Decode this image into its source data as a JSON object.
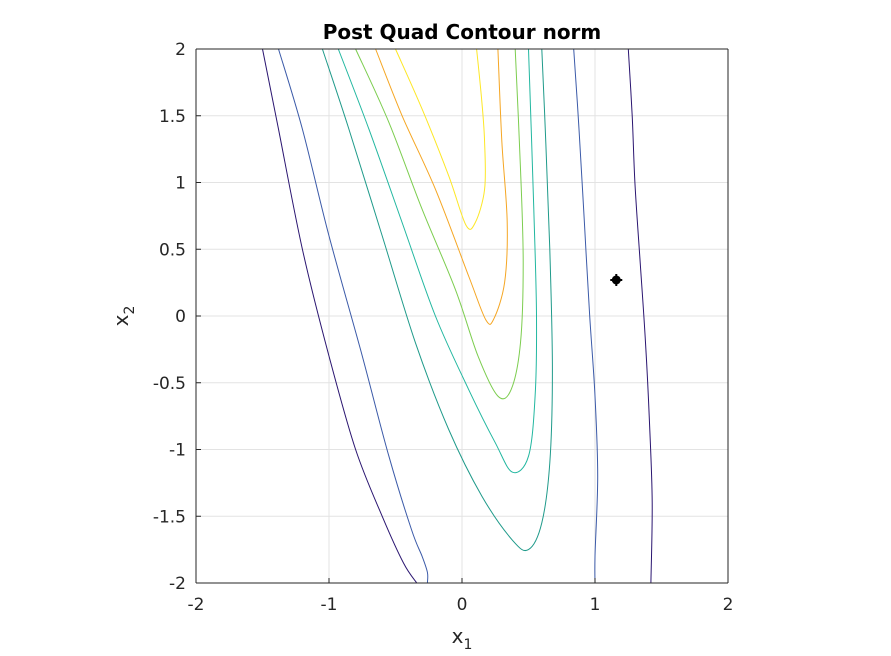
{
  "chart_data": {
    "type": "contour",
    "title": "Post Quad Contour norm",
    "xlabel": {
      "base": "x",
      "sub": "1"
    },
    "ylabel": {
      "base": "x",
      "sub": "2"
    },
    "xlim": [
      -2,
      2
    ],
    "ylim": [
      -2,
      2
    ],
    "xticks": [
      -2,
      -1,
      0,
      1,
      2
    ],
    "yticks": [
      -2,
      -1.5,
      -1,
      -0.5,
      0,
      0.5,
      1,
      1.5,
      2
    ],
    "xtick_labels": [
      "-2",
      "-1",
      "0",
      "1",
      "2"
    ],
    "ytick_labels": [
      "-2",
      "-1.5",
      "-1",
      "-0.5",
      "0",
      "0.5",
      "1",
      "1.5",
      "2"
    ],
    "grid": true,
    "marker": {
      "x": 1.16,
      "y": 0.27,
      "color": "#000000"
    },
    "contours": [
      {
        "color": "#fde725",
        "points": [
          [
            -0.5,
            2
          ],
          [
            -0.3,
            1.55
          ],
          [
            -0.1,
            1.05
          ],
          [
            0.03,
            0.68
          ],
          [
            0.1,
            0.7
          ],
          [
            0.17,
            0.95
          ],
          [
            0.17,
            1.3
          ],
          [
            0.15,
            1.6
          ],
          [
            0.11,
            2
          ]
        ]
      },
      {
        "color": "#f5a623",
        "points": [
          [
            -0.65,
            2
          ],
          [
            -0.45,
            1.5
          ],
          [
            -0.2,
            0.95
          ],
          [
            0.05,
            0.3
          ],
          [
            0.18,
            -0.03
          ],
          [
            0.24,
            -0.02
          ],
          [
            0.32,
            0.25
          ],
          [
            0.34,
            0.7
          ],
          [
            0.3,
            1.3
          ],
          [
            0.27,
            2
          ]
        ]
      },
      {
        "color": "#7ccd4f",
        "points": [
          [
            -0.8,
            2
          ],
          [
            -0.55,
            1.45
          ],
          [
            -0.3,
            0.8
          ],
          [
            -0.05,
            0.2
          ],
          [
            0.12,
            -0.3
          ],
          [
            0.27,
            -0.6
          ],
          [
            0.37,
            -0.55
          ],
          [
            0.44,
            -0.2
          ],
          [
            0.46,
            0.4
          ],
          [
            0.44,
            1.1
          ],
          [
            0.4,
            2
          ]
        ]
      },
      {
        "color": "#22b7a0",
        "points": [
          [
            -0.93,
            2
          ],
          [
            -0.7,
            1.4
          ],
          [
            -0.45,
            0.7
          ],
          [
            -0.2,
            0.0
          ],
          [
            0.05,
            -0.55
          ],
          [
            0.25,
            -0.95
          ],
          [
            0.38,
            -1.17
          ],
          [
            0.5,
            -1.05
          ],
          [
            0.55,
            -0.6
          ],
          [
            0.56,
            0.0
          ],
          [
            0.54,
            0.8
          ],
          [
            0.5,
            2
          ]
        ]
      },
      {
        "color": "#1f9a8a",
        "points": [
          [
            -1.05,
            2
          ],
          [
            -0.85,
            1.4
          ],
          [
            -0.6,
            0.6
          ],
          [
            -0.35,
            -0.2
          ],
          [
            -0.1,
            -0.85
          ],
          [
            0.15,
            -1.35
          ],
          [
            0.38,
            -1.68
          ],
          [
            0.5,
            -1.75
          ],
          [
            0.6,
            -1.55
          ],
          [
            0.66,
            -1.1
          ],
          [
            0.68,
            -0.4
          ],
          [
            0.66,
            0.5
          ],
          [
            0.63,
            1.3
          ],
          [
            0.6,
            2
          ]
        ]
      },
      {
        "color": "#3b5aa8",
        "points": [
          [
            -1.38,
            2
          ],
          [
            -1.2,
            1.4
          ],
          [
            -1.0,
            0.6
          ],
          [
            -0.75,
            -0.3
          ],
          [
            -0.55,
            -1.05
          ],
          [
            -0.38,
            -1.6
          ],
          [
            -0.3,
            -1.8
          ],
          [
            -0.26,
            -1.92
          ],
          [
            -0.26,
            -2
          ]
        ]
      },
      {
        "color": "#3b5aa8",
        "points": [
          [
            0.84,
            2
          ],
          [
            0.88,
            1.4
          ],
          [
            0.92,
            0.7
          ],
          [
            0.96,
            0.0
          ],
          [
            1.0,
            -0.6
          ],
          [
            1.02,
            -1.2
          ],
          [
            1.0,
            -1.8
          ],
          [
            1.0,
            -2
          ]
        ]
      },
      {
        "color": "#2a1570",
        "points": [
          [
            -1.5,
            2
          ],
          [
            -1.38,
            1.4
          ],
          [
            -1.2,
            0.5
          ],
          [
            -1.0,
            -0.3
          ],
          [
            -0.8,
            -1.0
          ],
          [
            -0.6,
            -1.5
          ],
          [
            -0.44,
            -1.85
          ],
          [
            -0.34,
            -2
          ]
        ]
      },
      {
        "color": "#2a1570",
        "points": [
          [
            1.25,
            2
          ],
          [
            1.28,
            1.5
          ],
          [
            1.3,
            1.0
          ],
          [
            1.34,
            0.4
          ],
          [
            1.38,
            -0.2
          ],
          [
            1.41,
            -0.8
          ],
          [
            1.43,
            -1.4
          ],
          [
            1.42,
            -2
          ]
        ]
      }
    ]
  }
}
